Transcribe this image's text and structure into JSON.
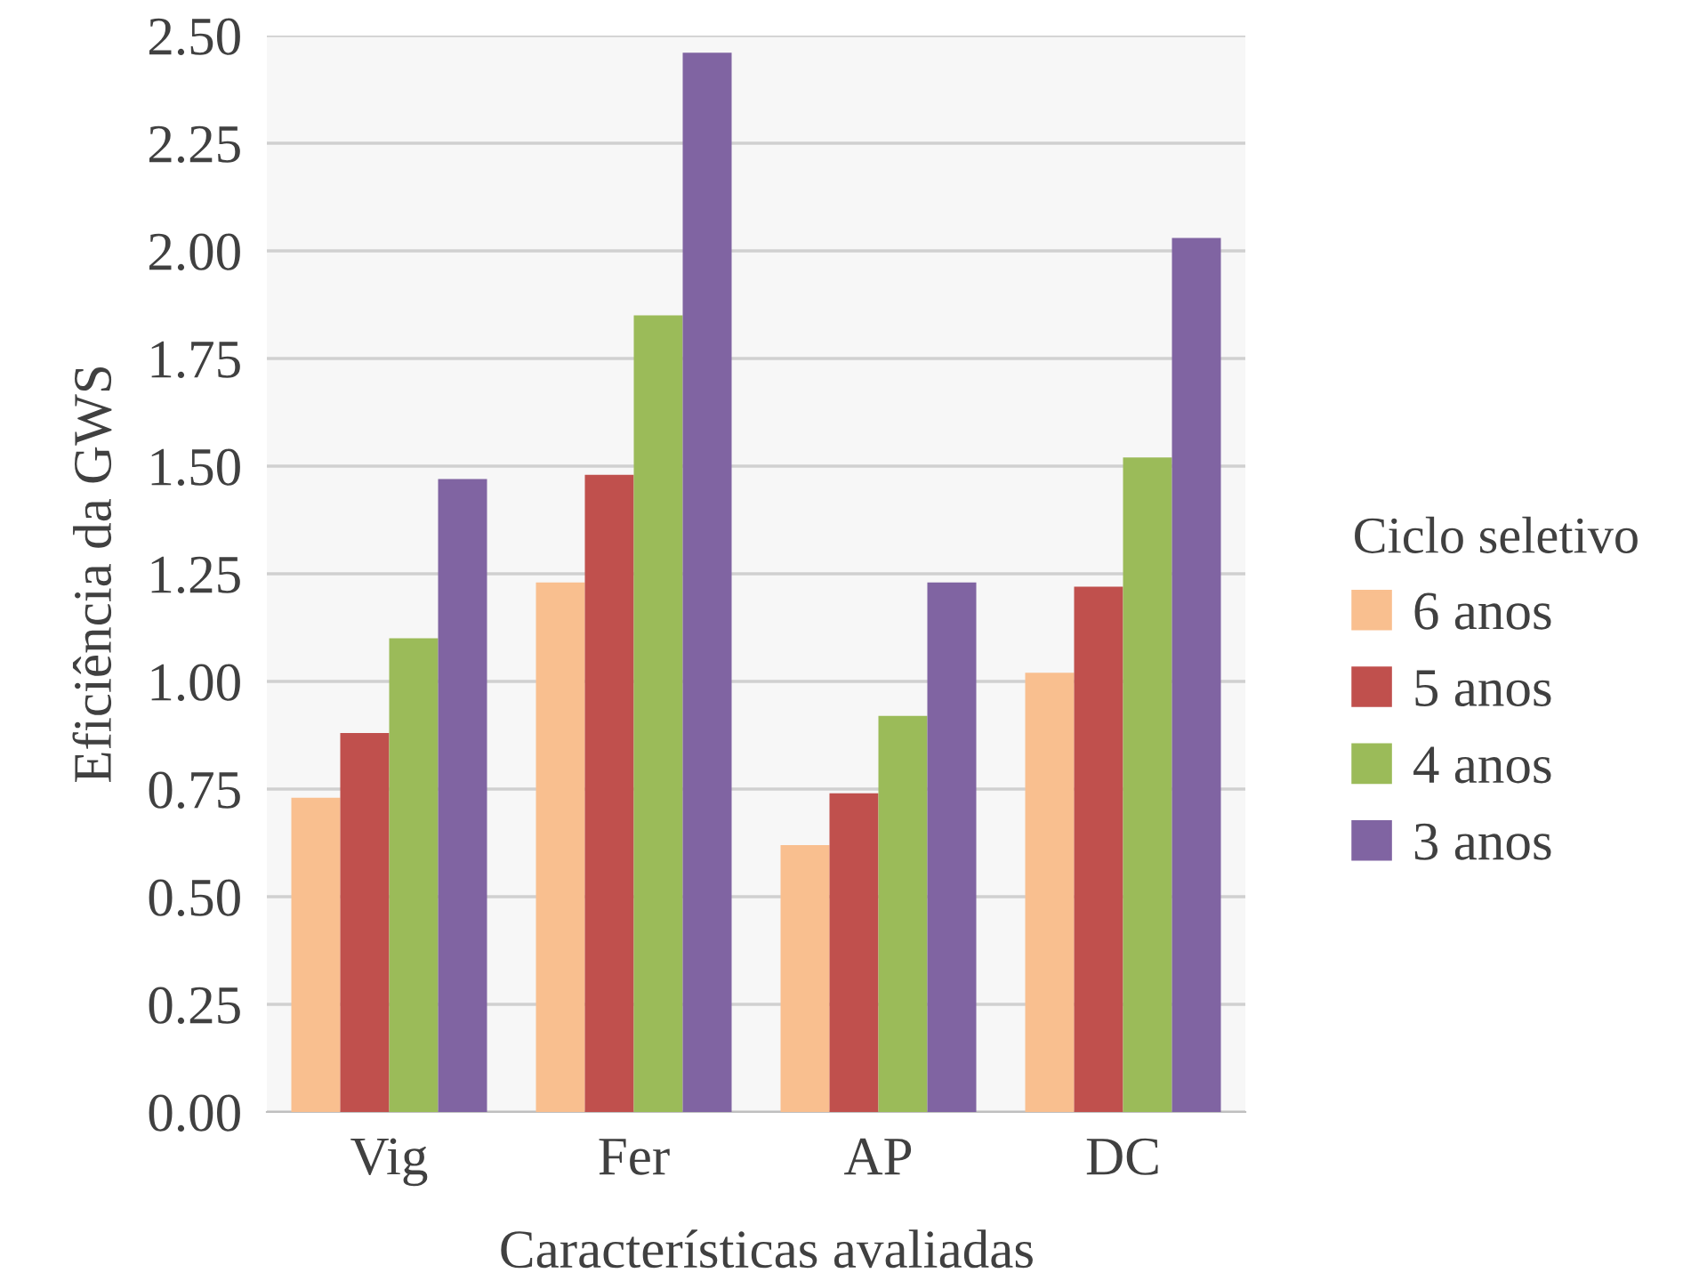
{
  "chart_data": {
    "type": "bar",
    "xlabel": "Características avaliadas",
    "ylabel": "Eficiência da GWS",
    "legend_title": "Ciclo seletivo",
    "categories": [
      "Vig",
      "Fer",
      "AP",
      "DC"
    ],
    "series": [
      {
        "name": "6 anos",
        "color": "#f9bf8f",
        "values": [
          0.73,
          1.23,
          0.62,
          1.02
        ]
      },
      {
        "name": "5 anos",
        "color": "#c0504d",
        "values": [
          0.88,
          1.48,
          0.74,
          1.22
        ]
      },
      {
        "name": "4 anos",
        "color": "#9bbb59",
        "values": [
          1.1,
          1.85,
          0.92,
          1.52
        ]
      },
      {
        "name": "3 anos",
        "color": "#8064a2",
        "values": [
          1.47,
          2.46,
          1.23,
          2.03
        ]
      }
    ],
    "ylim": [
      0,
      2.5
    ],
    "yticks": [
      {
        "value": 0,
        "label": "0.00"
      },
      {
        "value": 0.25,
        "label": "0.25"
      },
      {
        "value": 0.5,
        "label": "0.50"
      },
      {
        "value": 0.75,
        "label": "0.75"
      },
      {
        "value": 1,
        "label": "1.00"
      },
      {
        "value": 1.25,
        "label": "1.25"
      },
      {
        "value": 1.5,
        "label": "1.50"
      },
      {
        "value": 1.75,
        "label": "1.75"
      },
      {
        "value": 2,
        "label": "2.00"
      },
      {
        "value": 2.25,
        "label": "2.25"
      },
      {
        "value": 2.5,
        "label": "2.50"
      }
    ],
    "grid": "y",
    "legend": "right"
  }
}
